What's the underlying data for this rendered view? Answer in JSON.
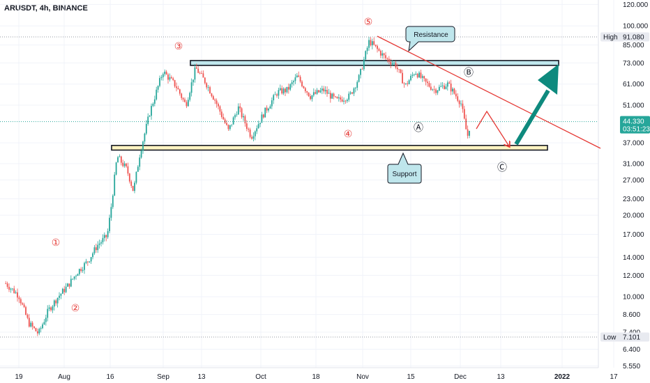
{
  "symbol_title": "ARUSDT, 4h, BINANCE",
  "chart_data": {
    "type": "candlestick",
    "symbol": "ARUSDT",
    "interval": "4h",
    "exchange": "BINANCE",
    "y_scale": "log",
    "ylim": [
      5.3,
      122
    ],
    "y_ticks": [
      "120.000",
      "100.000",
      "85.000",
      "73.000",
      "61.000",
      "51.000",
      "44.330",
      "37.000",
      "31.000",
      "27.000",
      "23.000",
      "20.000",
      "17.000",
      "14.000",
      "12.000",
      "10.000",
      "8.600",
      "7.400",
      "6.400",
      "5.550"
    ],
    "y_tick_values": [
      120,
      100,
      85,
      73,
      61,
      51,
      44.33,
      37,
      31,
      27,
      23,
      20,
      17,
      14,
      12,
      10,
      8.6,
      7.4,
      6.4,
      5.55
    ],
    "x_ticks": [
      "19",
      "Aug",
      "16",
      "Sep",
      "13",
      "Oct",
      "18",
      "Nov",
      "15",
      "Dec",
      "13",
      "2022",
      "17"
    ],
    "high": {
      "label": "High",
      "value": "91.080"
    },
    "low": {
      "label": "Low",
      "value": "7.101"
    },
    "last": {
      "value": "44.330",
      "countdown": "03:51:23"
    },
    "price_path": [
      {
        "x": "Jul 15",
        "y": 11.2
      },
      {
        "x": "Jul 19",
        "y": 10.1
      },
      {
        "x": "Jul 22",
        "y": 8.0
      },
      {
        "x": "Jul 25",
        "y": 7.3
      },
      {
        "x": "Jul 28",
        "y": 8.9
      },
      {
        "x": "Jul 31",
        "y": 10.0
      },
      {
        "x": "Aug 3",
        "y": 11.0
      },
      {
        "x": "Aug 6",
        "y": 12.4
      },
      {
        "x": "Aug 9",
        "y": 13.5
      },
      {
        "x": "Aug 12",
        "y": 15.5
      },
      {
        "x": "Aug 15",
        "y": 16.8
      },
      {
        "x": "Aug 16",
        "y": 20.5
      },
      {
        "x": "Aug 18",
        "y": 33.0
      },
      {
        "x": "Aug 21",
        "y": 29.5
      },
      {
        "x": "Aug 23",
        "y": 24.5
      },
      {
        "x": "Aug 25",
        "y": 34.0
      },
      {
        "x": "Aug 28",
        "y": 48.0
      },
      {
        "x": "Sep 1",
        "y": 68.0
      },
      {
        "x": "Sep 5",
        "y": 60.0
      },
      {
        "x": "Sep 8",
        "y": 51.0
      },
      {
        "x": "Sep 11",
        "y": 70.0
      },
      {
        "x": "Sep 14",
        "y": 62.0
      },
      {
        "x": "Sep 17",
        "y": 53.0
      },
      {
        "x": "Sep 21",
        "y": 41.0
      },
      {
        "x": "Sep 24",
        "y": 50.0
      },
      {
        "x": "Sep 28",
        "y": 39.0
      },
      {
        "x": "Oct 2",
        "y": 48.0
      },
      {
        "x": "Oct 6",
        "y": 57.0
      },
      {
        "x": "Oct 9",
        "y": 58.0
      },
      {
        "x": "Oct 12",
        "y": 65.0
      },
      {
        "x": "Oct 16",
        "y": 55.0
      },
      {
        "x": "Oct 20",
        "y": 58.0
      },
      {
        "x": "Oct 24",
        "y": 53.0
      },
      {
        "x": "Oct 28",
        "y": 55.0
      },
      {
        "x": "Oct 31",
        "y": 65.0
      },
      {
        "x": "Nov 1",
        "y": 72.0
      },
      {
        "x": "Nov 3",
        "y": 88.0
      },
      {
        "x": "Nov 5",
        "y": 83.0
      },
      {
        "x": "Nov 8",
        "y": 76.0
      },
      {
        "x": "Nov 11",
        "y": 72.0
      },
      {
        "x": "Nov 14",
        "y": 60.0
      },
      {
        "x": "Nov 17",
        "y": 68.0
      },
      {
        "x": "Nov 20",
        "y": 62.0
      },
      {
        "x": "Nov 23",
        "y": 58.0
      },
      {
        "x": "Nov 27",
        "y": 61.0
      },
      {
        "x": "Dec 1",
        "y": 52.0
      },
      {
        "x": "Dec 3",
        "y": 39.0
      },
      {
        "x": "Dec 4",
        "y": 44.33
      }
    ],
    "zones": [
      {
        "name": "resistance-zone",
        "y_low": 71.5,
        "y_high": 74.5,
        "color": "#bfe6ec"
      },
      {
        "name": "support-zone",
        "y_low": 34.8,
        "y_high": 36.2,
        "color": "#fff3c1"
      }
    ],
    "annotations": {
      "resistance": "Resistance",
      "support": "Support",
      "waves": [
        {
          "label": "①",
          "color": "#e53935"
        },
        {
          "label": "②",
          "color": "#e53935"
        },
        {
          "label": "③",
          "color": "#e53935"
        },
        {
          "label": "④",
          "color": "#e53935"
        },
        {
          "label": "⑤",
          "color": "#e53935"
        },
        {
          "label": "Ⓐ",
          "color": "#131722"
        },
        {
          "label": "Ⓑ",
          "color": "#131722"
        },
        {
          "label": "Ⓒ",
          "color": "#131722"
        }
      ]
    }
  },
  "colors": {
    "up": "#26a69a",
    "down": "#ef5350",
    "trendline": "#e53935",
    "teal_arrow": "#0e8a7e",
    "last_price_tag": "#26a69a",
    "grid": "#f0f3fa",
    "axis_text": "#131722"
  }
}
